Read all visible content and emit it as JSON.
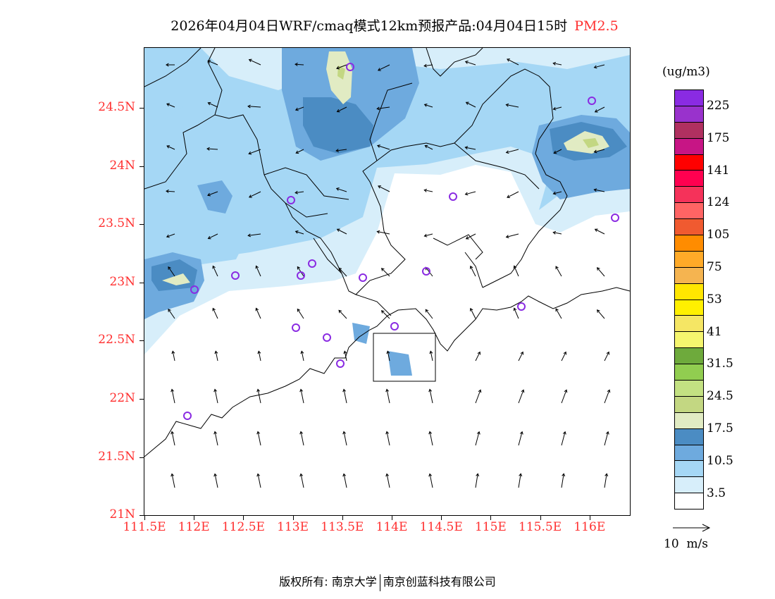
{
  "title": {
    "main": "2026年04月04日WRF/cmaq模式12km预报产品:04月04日15时",
    "species": "PM2.5"
  },
  "axes": {
    "lat_labels": [
      "24.5N",
      "24N",
      "23.5N",
      "23N",
      "22.5N",
      "22N",
      "21.5N",
      "21N"
    ],
    "lon_labels": [
      "111.5E",
      "112E",
      "112.5E",
      "113E",
      "113.5E",
      "114E",
      "114.5E",
      "115E",
      "115.5E",
      "116E"
    ]
  },
  "legend": {
    "unit": "(ug/m3)",
    "colors": [
      "#8a2be2",
      "#9932cc",
      "#b03060",
      "#c71585",
      "#ff0000",
      "#ff0050",
      "#f5325a",
      "#ff6464",
      "#f05a30",
      "#ff8c00",
      "#ffaa28",
      "#f5b450",
      "#ffe600",
      "#fff000",
      "#f5e664",
      "#f5f56e",
      "#6eaa3c",
      "#91cd50",
      "#c3e182",
      "#c3d782",
      "#e1ebc3",
      "#4b8cc3",
      "#6eaade",
      "#a5d7f5",
      "#d7eefa",
      "#ffffff"
    ],
    "labels": [
      "225",
      "175",
      "141",
      "124",
      "105",
      "75",
      "53",
      "41",
      "31.5",
      "24.5",
      "17.5",
      "10.5",
      "3.5"
    ],
    "wind_ref": "10  m/s"
  },
  "copyright": {
    "left": "版权所有: 南京大学",
    "right": "南京创蓝科技有限公司"
  }
}
